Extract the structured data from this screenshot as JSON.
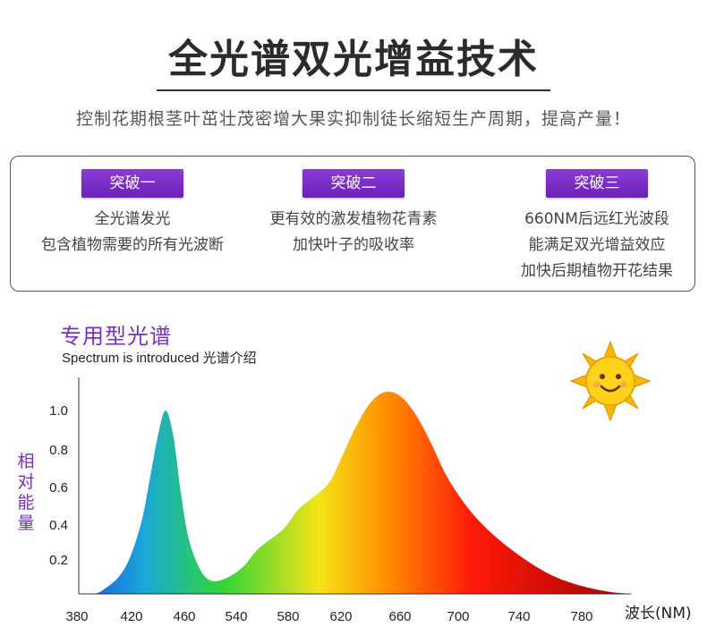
{
  "header": {
    "title": "全光谱双光增益技术",
    "subtitle": "控制花期根茎叶茁壮茂密增大果实抑制徒长缩短生产周期，提高产量！"
  },
  "features": [
    {
      "badge": "突破一",
      "lines": [
        "全光谱发光",
        "包含植物需要的所有光波断"
      ]
    },
    {
      "badge": "突破二",
      "lines": [
        "更有效的激发植物花青素",
        "加快叶子的吸收率"
      ]
    },
    {
      "badge": "突破三",
      "lines": [
        "660NM后远红光波段",
        "能满足双光增益效应",
        "加快后期植物开花结果"
      ]
    }
  ],
  "chart_data": {
    "type": "area",
    "title": "专用型光谱",
    "subtitle": "Spectrum is introduced 光谱介绍",
    "ylabel": "相对能量",
    "xlabel": "波长(NM)",
    "x_ticks": [
      380,
      420,
      460,
      540,
      580,
      620,
      660,
      700,
      740,
      780
    ],
    "y_ticks": [
      0.2,
      0.4,
      0.6,
      0.8,
      1.0
    ],
    "points": [
      [
        0,
        0
      ],
      [
        0.02,
        0.02
      ],
      [
        0.06,
        0.09
      ],
      [
        0.09,
        0.2
      ],
      [
        0.12,
        0.4
      ],
      [
        0.14,
        0.62
      ],
      [
        0.16,
        0.85
      ],
      [
        0.18,
        1.0
      ],
      [
        0.2,
        0.87
      ],
      [
        0.22,
        0.55
      ],
      [
        0.24,
        0.3
      ],
      [
        0.27,
        0.13
      ],
      [
        0.3,
        0.07
      ],
      [
        0.34,
        0.09
      ],
      [
        0.38,
        0.15
      ],
      [
        0.42,
        0.25
      ],
      [
        0.48,
        0.35
      ],
      [
        0.52,
        0.46
      ],
      [
        0.56,
        0.53
      ],
      [
        0.6,
        0.61
      ],
      [
        0.63,
        0.74
      ],
      [
        0.66,
        0.88
      ],
      [
        0.7,
        1.03
      ],
      [
        0.74,
        1.1
      ],
      [
        0.78,
        1.08
      ],
      [
        0.82,
        0.98
      ],
      [
        0.86,
        0.82
      ],
      [
        0.9,
        0.64
      ],
      [
        0.95,
        0.48
      ],
      [
        1.0,
        0.36
      ],
      [
        1.06,
        0.25
      ],
      [
        1.12,
        0.16
      ],
      [
        1.18,
        0.09
      ],
      [
        1.25,
        0.04
      ],
      [
        1.32,
        0.01
      ],
      [
        1.38,
        0
      ]
    ],
    "colors": {
      "blue": "#1e5fe0",
      "cyan": "#1aa8d8",
      "green": "#2ed43a",
      "yellow": "#f5e316",
      "orange": "#ff8a00",
      "red": "#ff1a0a",
      "dark_red": "#a10000"
    }
  }
}
